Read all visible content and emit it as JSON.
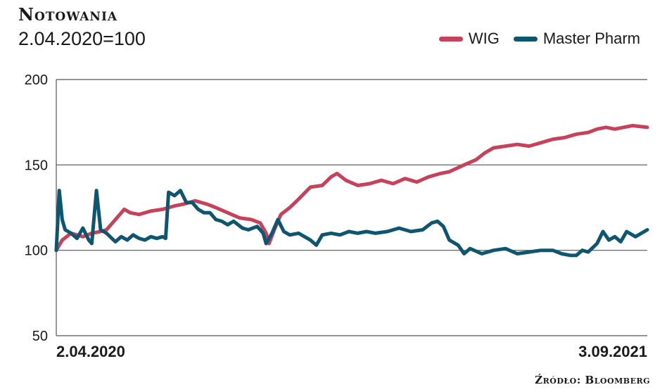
{
  "chart_data": {
    "type": "line",
    "title": "Notowania",
    "subtitle": "2.04.2020=100",
    "source": "Źródło: Bloomberg",
    "ylim": [
      50,
      200
    ],
    "y_ticks": [
      "200",
      "150",
      "100",
      "50"
    ],
    "x_start_label": "2.04.2020",
    "x_end_label": "3.09.2021",
    "grid": true,
    "legend_position": "top-right",
    "series": [
      {
        "name": "WIG",
        "color": "#c8415a",
        "points": [
          [
            0.0,
            100
          ],
          [
            0.01,
            106
          ],
          [
            0.025,
            110
          ],
          [
            0.045,
            108
          ],
          [
            0.06,
            110
          ],
          [
            0.075,
            111
          ],
          [
            0.085,
            112
          ],
          [
            0.1,
            118
          ],
          [
            0.115,
            124
          ],
          [
            0.125,
            122
          ],
          [
            0.14,
            121
          ],
          [
            0.16,
            123
          ],
          [
            0.18,
            124
          ],
          [
            0.2,
            126
          ],
          [
            0.215,
            127
          ],
          [
            0.235,
            129
          ],
          [
            0.255,
            127
          ],
          [
            0.27,
            125
          ],
          [
            0.29,
            122
          ],
          [
            0.31,
            119
          ],
          [
            0.33,
            118
          ],
          [
            0.345,
            116
          ],
          [
            0.355,
            110
          ],
          [
            0.36,
            104
          ],
          [
            0.37,
            113
          ],
          [
            0.38,
            121
          ],
          [
            0.395,
            125
          ],
          [
            0.41,
            130
          ],
          [
            0.43,
            137
          ],
          [
            0.45,
            138
          ],
          [
            0.465,
            143
          ],
          [
            0.475,
            145
          ],
          [
            0.49,
            141
          ],
          [
            0.51,
            138
          ],
          [
            0.53,
            139
          ],
          [
            0.55,
            141
          ],
          [
            0.57,
            139
          ],
          [
            0.59,
            142
          ],
          [
            0.61,
            140
          ],
          [
            0.63,
            143
          ],
          [
            0.65,
            145
          ],
          [
            0.665,
            146
          ],
          [
            0.69,
            150
          ],
          [
            0.71,
            153
          ],
          [
            0.725,
            157
          ],
          [
            0.74,
            160
          ],
          [
            0.76,
            161
          ],
          [
            0.78,
            162
          ],
          [
            0.8,
            161
          ],
          [
            0.82,
            163
          ],
          [
            0.84,
            165
          ],
          [
            0.86,
            166
          ],
          [
            0.88,
            168
          ],
          [
            0.9,
            169
          ],
          [
            0.915,
            171
          ],
          [
            0.93,
            172
          ],
          [
            0.945,
            171
          ],
          [
            0.96,
            172
          ],
          [
            0.975,
            173
          ],
          [
            1.0,
            172
          ]
        ]
      },
      {
        "name": "Master Pharm",
        "color": "#0e5570",
        "points": [
          [
            0.0,
            100
          ],
          [
            0.005,
            135
          ],
          [
            0.01,
            118
          ],
          [
            0.015,
            112
          ],
          [
            0.025,
            110
          ],
          [
            0.035,
            107
          ],
          [
            0.045,
            113
          ],
          [
            0.055,
            106
          ],
          [
            0.06,
            104
          ],
          [
            0.068,
            135
          ],
          [
            0.075,
            112
          ],
          [
            0.085,
            110
          ],
          [
            0.1,
            105
          ],
          [
            0.11,
            108
          ],
          [
            0.12,
            106
          ],
          [
            0.13,
            109
          ],
          [
            0.14,
            107
          ],
          [
            0.15,
            106
          ],
          [
            0.16,
            108
          ],
          [
            0.17,
            107
          ],
          [
            0.18,
            108
          ],
          [
            0.185,
            107
          ],
          [
            0.19,
            134
          ],
          [
            0.2,
            132
          ],
          [
            0.21,
            135
          ],
          [
            0.22,
            128
          ],
          [
            0.23,
            128
          ],
          [
            0.24,
            124
          ],
          [
            0.25,
            122
          ],
          [
            0.26,
            122
          ],
          [
            0.27,
            118
          ],
          [
            0.28,
            117
          ],
          [
            0.29,
            115
          ],
          [
            0.3,
            117
          ],
          [
            0.315,
            113
          ],
          [
            0.325,
            112
          ],
          [
            0.34,
            114
          ],
          [
            0.35,
            110
          ],
          [
            0.355,
            104
          ],
          [
            0.365,
            110
          ],
          [
            0.375,
            118
          ],
          [
            0.385,
            111
          ],
          [
            0.395,
            109
          ],
          [
            0.41,
            110
          ],
          [
            0.42,
            108
          ],
          [
            0.43,
            106
          ],
          [
            0.44,
            103
          ],
          [
            0.45,
            109
          ],
          [
            0.465,
            110
          ],
          [
            0.48,
            109
          ],
          [
            0.495,
            111
          ],
          [
            0.51,
            110
          ],
          [
            0.525,
            111
          ],
          [
            0.54,
            110
          ],
          [
            0.56,
            111
          ],
          [
            0.58,
            113
          ],
          [
            0.6,
            111
          ],
          [
            0.62,
            112
          ],
          [
            0.635,
            116
          ],
          [
            0.645,
            117
          ],
          [
            0.655,
            114
          ],
          [
            0.665,
            106
          ],
          [
            0.68,
            103
          ],
          [
            0.69,
            98
          ],
          [
            0.7,
            101
          ],
          [
            0.72,
            98
          ],
          [
            0.74,
            100
          ],
          [
            0.76,
            101
          ],
          [
            0.78,
            98
          ],
          [
            0.8,
            99
          ],
          [
            0.82,
            100
          ],
          [
            0.84,
            100
          ],
          [
            0.855,
            98
          ],
          [
            0.87,
            97
          ],
          [
            0.88,
            97
          ],
          [
            0.89,
            100
          ],
          [
            0.9,
            99
          ],
          [
            0.915,
            104
          ],
          [
            0.925,
            111
          ],
          [
            0.935,
            106
          ],
          [
            0.945,
            108
          ],
          [
            0.955,
            105
          ],
          [
            0.965,
            111
          ],
          [
            0.98,
            108
          ],
          [
            1.0,
            112
          ]
        ]
      }
    ]
  }
}
